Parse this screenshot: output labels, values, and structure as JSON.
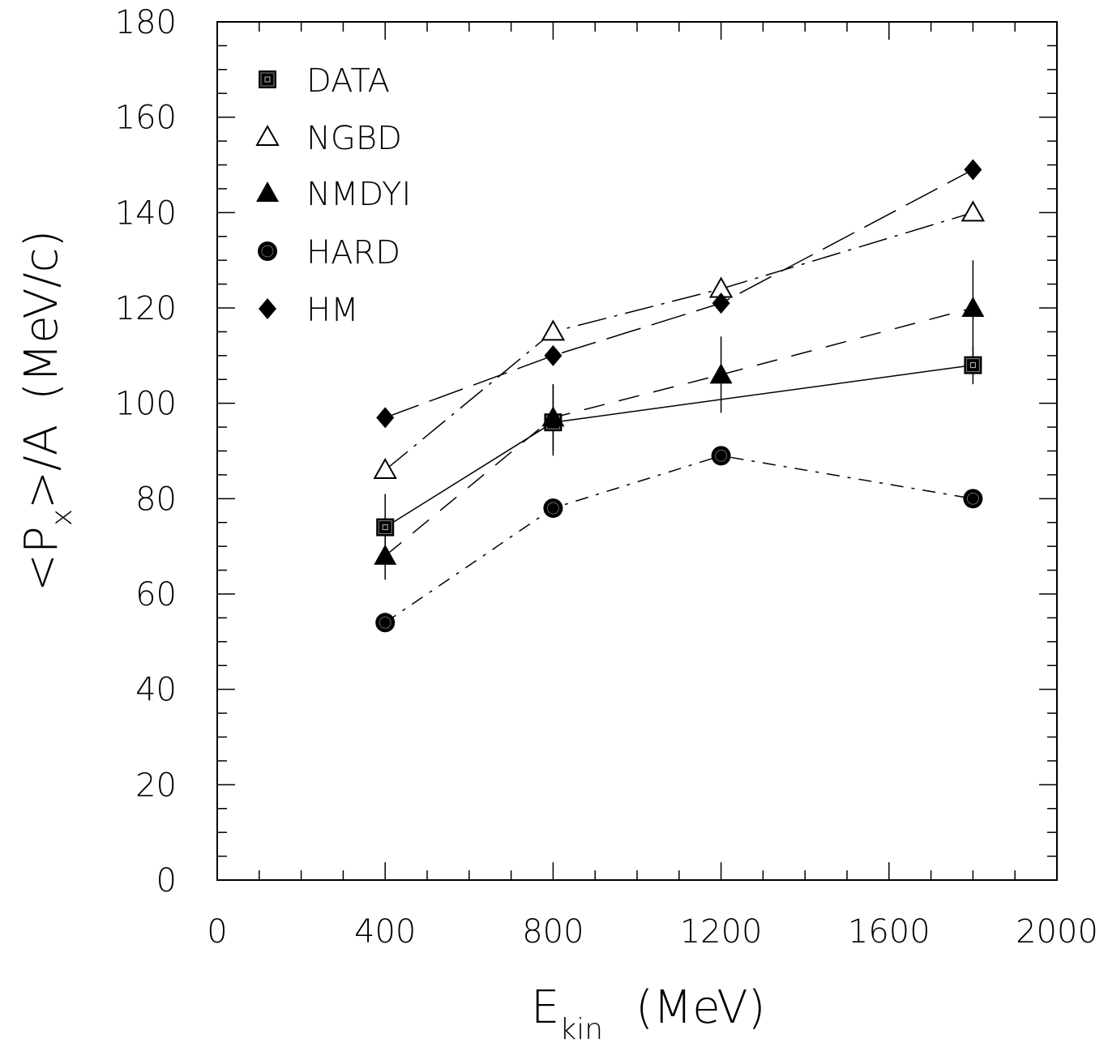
{
  "chart_data": {
    "type": "scatter",
    "xlabel": {
      "main": "E",
      "sub": "kin",
      "unit": "(MeV)"
    },
    "ylabel": {
      "open": "<P",
      "sub": "x",
      "close": ">/A",
      "unit": "(MeV/c)"
    },
    "xlim": [
      0,
      2000
    ],
    "ylim": [
      0,
      180
    ],
    "xticks": [
      0,
      400,
      800,
      1200,
      1600,
      2000
    ],
    "yticks": [
      0,
      20,
      40,
      60,
      80,
      100,
      120,
      140,
      160,
      180
    ],
    "grid": false,
    "legend_position": "top-left",
    "series": [
      {
        "name": "DATA",
        "marker": "filled-square",
        "line": "solid",
        "x": [
          400,
          800,
          1800
        ],
        "y": [
          74,
          96,
          108
        ],
        "yerr_low": [
          67,
          89,
          104
        ],
        "yerr_high": [
          81,
          104,
          112
        ]
      },
      {
        "name": "NGBD",
        "marker": "open-triangle",
        "line": "dash-dot",
        "x": [
          400,
          800,
          1200,
          1800
        ],
        "y": [
          86,
          115,
          124,
          140
        ]
      },
      {
        "name": "NMDYI",
        "marker": "filled-triangle",
        "line": "dashed",
        "x": [
          400,
          800,
          1200,
          1800
        ],
        "y": [
          68,
          97,
          106,
          120
        ],
        "yerr_low": [
          63,
          90,
          98,
          110
        ],
        "yerr_high": [
          73,
          104,
          114,
          130
        ]
      },
      {
        "name": "HARD",
        "marker": "filled-circle",
        "line": "dash-dot-short",
        "x": [
          400,
          800,
          1200,
          1800
        ],
        "y": [
          54,
          78,
          89,
          80
        ]
      },
      {
        "name": "HM",
        "marker": "filled-diamond",
        "line": "long-dash",
        "x": [
          400,
          800,
          1200,
          1800
        ],
        "y": [
          97,
          110,
          121,
          149
        ]
      }
    ]
  }
}
